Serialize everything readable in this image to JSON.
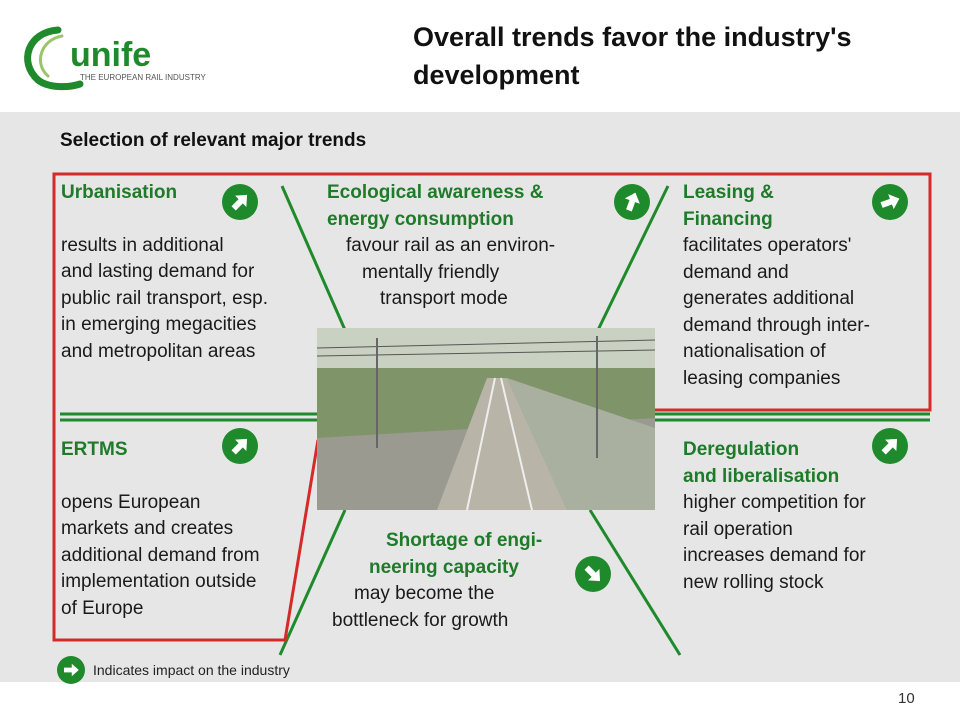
{
  "logo": {
    "name": "unife",
    "tagline": "THE EUROPEAN RAIL INDUSTRY"
  },
  "slide": {
    "title_line1": "Overall trends favor the industry's",
    "title_line2": "development",
    "subtitle": "Selection of relevant major trends",
    "page_number": "10"
  },
  "trends": {
    "urbanisation": {
      "heading": "Urbanisation",
      "lines": [
        "results in additional",
        "and lasting demand for",
        "public rail transport, esp.",
        "in emerging megacities",
        "and metropolitan areas"
      ]
    },
    "ecological": {
      "heading_line1": "Ecological awareness &",
      "heading_line2": "energy consumption",
      "lines": [
        "favour rail as an environ-",
        "mentally friendly",
        "transport mode"
      ]
    },
    "leasing": {
      "heading_line1": "Leasing &",
      "heading_line2": "Financing",
      "lines": [
        "facilitates operators'",
        "demand and",
        "generates additional",
        "demand through inter-",
        "nationalisation of",
        "leasing companies"
      ]
    },
    "ertms": {
      "heading": "ERTMS",
      "lines": [
        "opens European",
        "markets and creates",
        "additional demand from",
        "implementation outside",
        "of Europe"
      ]
    },
    "deregulation": {
      "heading_line1": "Deregulation",
      "heading_line2": "and liberalisation",
      "lines": [
        "higher competition for",
        "rail operation",
        "increases demand for",
        "new rolling stock"
      ]
    },
    "shortage": {
      "heading_line1": "Shortage of engi-",
      "heading_line2": "neering capacity",
      "lines": [
        "may become the",
        "bottleneck for growth"
      ]
    }
  },
  "legend": {
    "text": "Indicates impact on the industry"
  },
  "colors": {
    "accent_green": "#1f8a2c",
    "heading_green": "#1f7a2a",
    "highlight_red": "#d42a2a",
    "panel_gray": "#e6e6e6"
  }
}
